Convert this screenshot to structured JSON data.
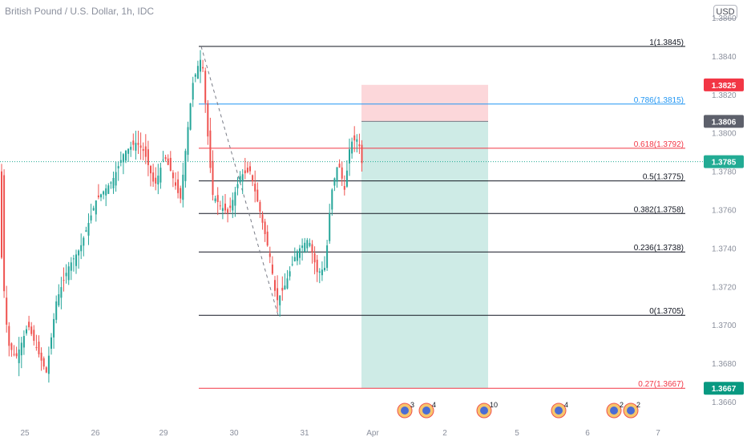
{
  "header": {
    "title": "British Pound / U.S. Dollar, 1h, IDC",
    "currency_button": "USD"
  },
  "chart_data": {
    "type": "candlestick",
    "title": "British Pound / U.S. Dollar, 1h, IDC",
    "y_axis": {
      "ticks": [
        "1.3660",
        "1.3680",
        "1.3700",
        "1.3720",
        "1.3740",
        "1.3760",
        "1.3780",
        "1.3800",
        "1.3820",
        "1.3840",
        "1.3860"
      ],
      "range": [
        1.3655,
        1.3865
      ]
    },
    "x_axis": {
      "ticks": [
        "25",
        "26",
        "29",
        "30",
        "31",
        "Apr",
        "2",
        "5",
        "6",
        "7"
      ]
    },
    "fibonacci": {
      "levels": [
        {
          "label": "1(1.3845)",
          "price": 1.3845,
          "color": "#131722"
        },
        {
          "label": "0.786(1.3815)",
          "price": 1.3815,
          "color": "#2196f3"
        },
        {
          "label": "0.618(1.3792)",
          "price": 1.3792,
          "color": "#f23645"
        },
        {
          "label": "0.5(1.3775)",
          "price": 1.3775,
          "color": "#131722"
        },
        {
          "label": "0.382(1.3758)",
          "price": 1.3758,
          "color": "#131722"
        },
        {
          "label": "0.236(1.3738)",
          "price": 1.3738,
          "color": "#131722"
        },
        {
          "label": "0(1.3705)",
          "price": 1.3705,
          "color": "#131722"
        },
        {
          "label": "0.27(1.3667)",
          "price": 1.3667,
          "color": "#f23645"
        }
      ]
    },
    "short_position": {
      "stop": 1.3825,
      "entry": 1.3806,
      "target": 1.3667
    },
    "price_tags": [
      {
        "value": "1.3825",
        "color": "#f23645"
      },
      {
        "value": "1.3806",
        "color": "#5d606b"
      },
      {
        "value": "1.3785",
        "color": "#22ab94"
      },
      {
        "value": "1.3667",
        "color": "#089981"
      }
    ],
    "current_price": 1.3785,
    "event_badges": [
      "3",
      "4",
      "10",
      "4",
      "2",
      "2"
    ],
    "colors": {
      "up": "#26a69a",
      "down": "#ef5350"
    }
  }
}
